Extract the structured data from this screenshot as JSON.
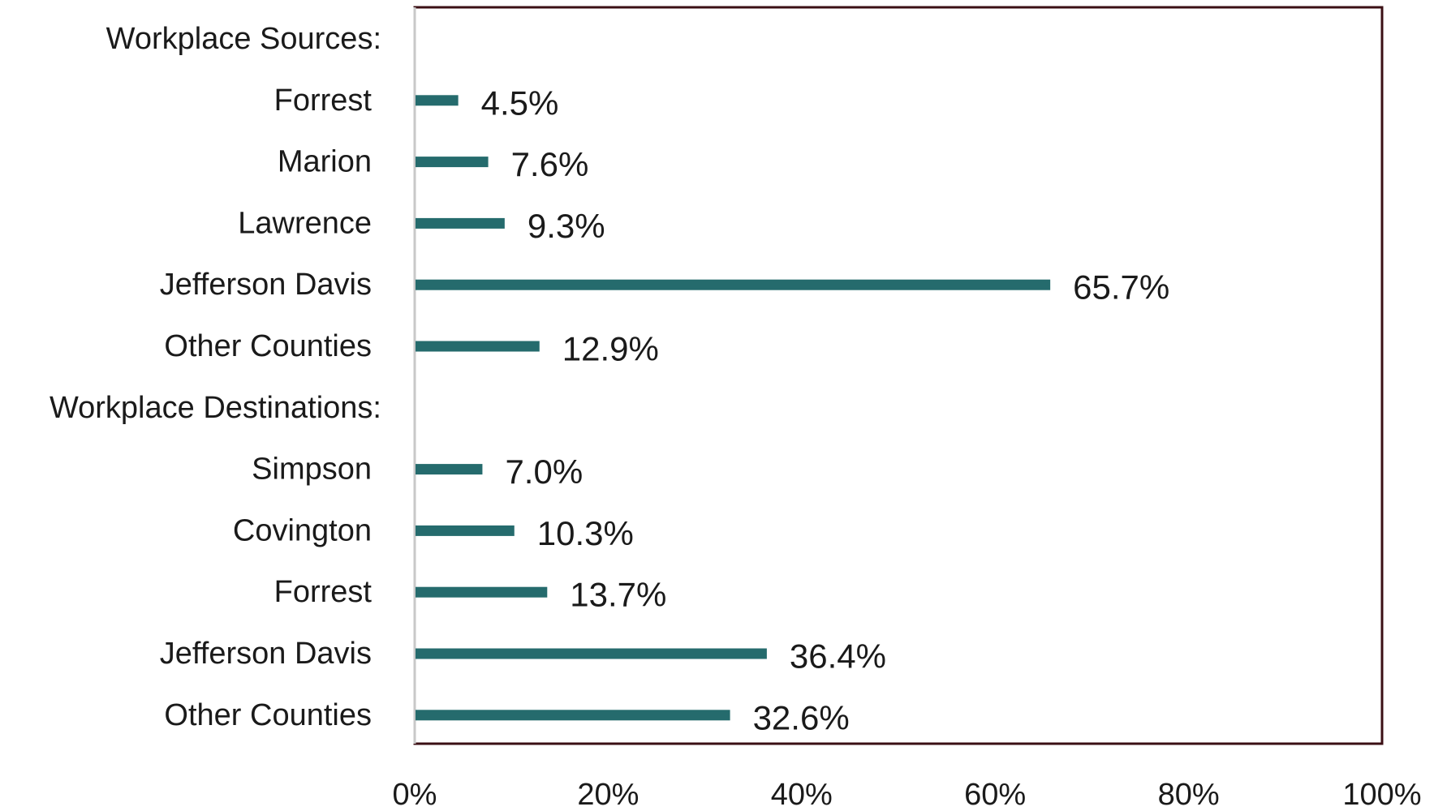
{
  "chart_data": {
    "type": "bar",
    "orientation": "horizontal",
    "rows": [
      {
        "label": "Workplace Sources:",
        "is_header": true
      },
      {
        "label": "Forrest",
        "value": 4.5,
        "value_label": "4.5%"
      },
      {
        "label": "Marion",
        "value": 7.6,
        "value_label": "7.6%"
      },
      {
        "label": "Lawrence",
        "value": 9.3,
        "value_label": "9.3%"
      },
      {
        "label": "Jefferson Davis",
        "value": 65.7,
        "value_label": "65.7%"
      },
      {
        "label": "Other Counties",
        "value": 12.9,
        "value_label": "12.9%"
      },
      {
        "label": "Workplace Destinations:",
        "is_header": true
      },
      {
        "label": "Simpson",
        "value": 7.0,
        "value_label": "7.0%"
      },
      {
        "label": "Covington",
        "value": 10.3,
        "value_label": "10.3%"
      },
      {
        "label": "Forrest",
        "value": 13.7,
        "value_label": "13.7%"
      },
      {
        "label": "Jefferson Davis",
        "value": 36.4,
        "value_label": "36.4%"
      },
      {
        "label": "Other Counties",
        "value": 32.6,
        "value_label": "32.6%"
      }
    ],
    "xlim": [
      0,
      100
    ],
    "x_ticks": [
      0,
      20,
      40,
      60,
      80,
      100
    ],
    "x_tick_labels": [
      "0%",
      "20%",
      "40%",
      "60%",
      "80%",
      "100%"
    ],
    "grid": false,
    "legend": "none"
  },
  "colors": {
    "bar": "#256b6d",
    "plot_border": "#3b0f14",
    "left_axis": "#c8c8c8",
    "text": "#1a1a1a"
  }
}
